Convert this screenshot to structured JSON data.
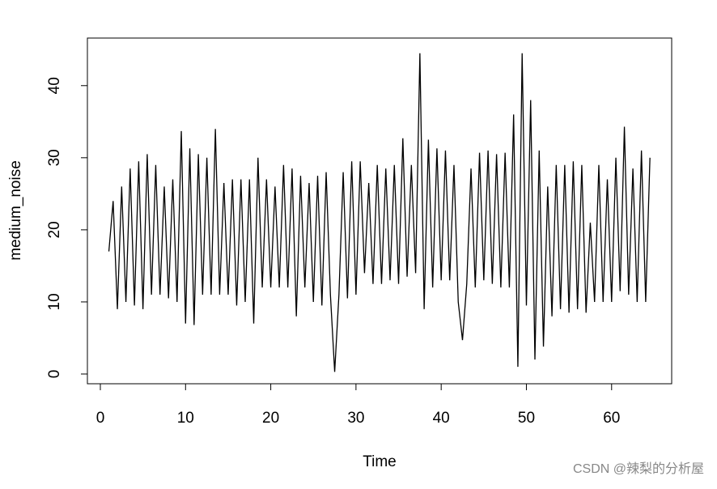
{
  "chart_data": {
    "type": "line",
    "x_label": "Time",
    "y_label": "medium_noise",
    "watermark": "CSDN @辣梨的分析屋",
    "x": [
      1,
      1.5,
      2,
      2.5,
      3,
      3.5,
      4,
      4.5,
      5,
      5.5,
      6,
      6.5,
      7,
      7.5,
      8,
      8.5,
      9,
      9.5,
      10,
      10.5,
      11,
      11.5,
      12,
      12.5,
      13,
      13.5,
      14,
      14.5,
      15,
      15.5,
      16,
      16.5,
      17,
      17.5,
      18,
      18.5,
      19,
      19.5,
      20,
      20.5,
      21,
      21.5,
      22,
      22.5,
      23,
      23.5,
      24,
      24.5,
      25,
      25.5,
      26,
      26.5,
      27,
      27.5,
      28,
      28.5,
      29,
      29.5,
      30,
      30.5,
      31,
      31.5,
      32,
      32.5,
      33,
      33.5,
      34,
      34.5,
      35,
      35.5,
      36,
      36.5,
      37,
      37.5,
      38,
      38.5,
      39,
      39.5,
      40,
      40.5,
      41,
      41.5,
      42,
      42.5,
      43,
      43.5,
      44,
      44.5,
      45,
      45.5,
      46,
      46.5,
      47,
      47.5,
      48,
      48.5,
      49,
      49.5,
      50,
      50.5,
      51,
      51.5,
      52,
      52.5,
      53,
      53.5,
      54,
      54.5,
      55,
      55.5,
      56,
      56.5,
      57,
      57.5,
      58,
      58.5,
      59,
      59.5,
      60,
      60.5,
      61,
      61.5,
      62,
      62.5,
      63,
      63.5,
      64,
      64.5
    ],
    "series": [
      {
        "name": "medium_noise",
        "color": "#000000",
        "values": [
          17,
          24,
          9,
          26,
          10,
          28.5,
          9.5,
          29.5,
          9,
          30.5,
          11,
          29,
          11,
          26,
          10.5,
          27,
          10,
          33.7,
          7,
          31.3,
          6.8,
          30.5,
          11,
          30,
          11,
          34,
          11,
          26.5,
          11,
          27,
          9.5,
          27,
          10,
          27,
          7,
          30,
          12,
          27,
          12,
          26,
          12,
          29,
          12,
          28.5,
          8,
          27.5,
          12,
          26.5,
          10,
          27.5,
          9.5,
          28,
          11,
          0.3,
          11,
          28,
          10.5,
          29.5,
          11,
          29.5,
          14,
          26.5,
          12.5,
          29,
          12.5,
          28.5,
          13,
          29,
          12.5,
          32.7,
          13.5,
          29,
          14,
          44.5,
          9,
          32.5,
          12,
          31.3,
          13,
          31,
          13,
          29,
          10,
          4.7,
          12.5,
          28.5,
          12,
          30.7,
          13,
          31,
          12.5,
          30.5,
          12,
          30.7,
          12,
          36,
          1,
          44.5,
          9.5,
          38,
          2,
          31,
          3.8,
          26,
          8,
          29,
          9,
          29,
          8.5,
          29.5,
          9,
          29,
          8.5,
          21,
          10,
          29,
          10,
          27,
          10,
          30,
          11.5,
          34.3,
          11,
          28.5,
          10,
          31,
          10,
          30
        ]
      }
    ],
    "xlim": [
      -1.52,
      67.05
    ],
    "ylim": [
      -1.35,
      46.6
    ],
    "xticks": [
      0,
      10,
      20,
      30,
      40,
      50,
      60
    ],
    "yticks": [
      0,
      10,
      20,
      30,
      40
    ]
  }
}
